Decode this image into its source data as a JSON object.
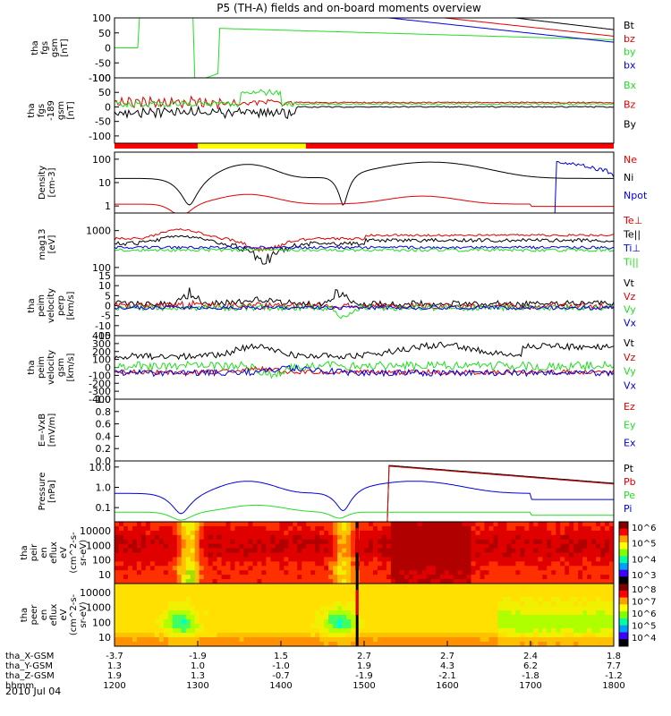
{
  "title": "P5 (TH-A) fields and on-board moments overview",
  "date_label": "2010 Jul 04",
  "colors": {
    "black": "#000000",
    "red": "#e00000",
    "green": "#22dd22",
    "blue": "#0000e0",
    "bar_red": "#ff0000",
    "bar_yellow": "#ffff00"
  },
  "chart_data": [
    {
      "id": "fgs",
      "type": "line",
      "ylabel": [
        "tha",
        "fgs",
        "gsm",
        "[nT]"
      ],
      "yticks": [
        100,
        50,
        0,
        -50,
        -100
      ],
      "ylim": [
        -100,
        100
      ],
      "legend": [
        {
          "label": "Bt",
          "color": "#000000"
        },
        {
          "label": "bz",
          "color": "#e00000"
        },
        {
          "label": "by",
          "color": "#22dd22"
        },
        {
          "label": "bx",
          "color": "#0000e0"
        }
      ]
    },
    {
      "id": "fgs_lowres",
      "type": "line",
      "ylabel": [
        "tha",
        "fgs",
        "-189",
        "gsm",
        "[nT]"
      ],
      "yticks": [
        100,
        50,
        0,
        -50,
        -100
      ],
      "ylim": [
        -125,
        100
      ],
      "legend": [
        {
          "label": "Bx",
          "color": "#22dd22"
        },
        {
          "label": "Bz",
          "color": "#e00000"
        },
        {
          "label": "By",
          "color": "#000000"
        }
      ]
    },
    {
      "id": "density",
      "type": "line",
      "scale": "log",
      "ylabel": [
        "Density",
        "[cm-3]"
      ],
      "yticks": [
        "100",
        "10",
        "1"
      ],
      "ylim": [
        0.5,
        200
      ],
      "legend": [
        {
          "label": "Ne",
          "color": "#e00000"
        },
        {
          "label": "Ni",
          "color": "#000000"
        },
        {
          "label": "Npot",
          "color": "#0000e0"
        }
      ]
    },
    {
      "id": "temperature",
      "type": "line",
      "scale": "log",
      "ylabel": [
        "mag13",
        "[eV]"
      ],
      "yticks": [
        "1000",
        "100"
      ],
      "ylim": [
        60,
        3000
      ],
      "legend": [
        {
          "label": "Te⊥",
          "color": "#e00000"
        },
        {
          "label": "Te||",
          "color": "#000000"
        },
        {
          "label": "Ti⊥",
          "color": "#0000e0"
        },
        {
          "label": "Ti||",
          "color": "#22dd22"
        }
      ]
    },
    {
      "id": "vel_perp",
      "type": "line",
      "ylabel": [
        "tha",
        "peim",
        "velocity",
        "perp",
        "[km/s]"
      ],
      "yticks": [
        "15",
        "10",
        "5",
        "0",
        "-5",
        "-10",
        "-15"
      ],
      "ylim": [
        -15,
        15
      ],
      "legend": [
        {
          "label": "Vt",
          "color": "#000000"
        },
        {
          "label": "Vz",
          "color": "#e00000"
        },
        {
          "label": "Vy",
          "color": "#22dd22"
        },
        {
          "label": "Vx",
          "color": "#0000e0"
        }
      ]
    },
    {
      "id": "vel_gsm",
      "type": "line",
      "ylabel": [
        "tha",
        "peim",
        "velocity",
        "gsm",
        "[km/s]"
      ],
      "yticks": [
        "400",
        "300",
        "200",
        "100",
        "0",
        "-100",
        "-200",
        "-300",
        "-400"
      ],
      "ylim": [
        -400,
        400
      ],
      "legend": [
        {
          "label": "Vt",
          "color": "#000000"
        },
        {
          "label": "Vz",
          "color": "#e00000"
        },
        {
          "label": "Vy",
          "color": "#22dd22"
        },
        {
          "label": "Vx",
          "color": "#0000e0"
        }
      ]
    },
    {
      "id": "efield",
      "type": "line",
      "ylabel": [
        "E=-VxB",
        "[mV/m]"
      ],
      "yticks": [
        "1.0",
        "0.8",
        "0.6",
        "0.4",
        "0.2",
        "0.0"
      ],
      "ylim": [
        0,
        1
      ],
      "legend": [
        {
          "label": "Ez",
          "color": "#e00000"
        },
        {
          "label": "Ey",
          "color": "#22dd22"
        },
        {
          "label": "Ex",
          "color": "#0000e0"
        }
      ]
    },
    {
      "id": "pressure",
      "type": "line",
      "scale": "log",
      "ylabel": [
        "Pressure",
        "[nPa]"
      ],
      "yticks": [
        "10.0",
        "1.0",
        "0.1"
      ],
      "ylim": [
        0.02,
        20
      ],
      "legend": [
        {
          "label": "Pt",
          "color": "#000000"
        },
        {
          "label": "Pb",
          "color": "#e00000"
        },
        {
          "label": "Pe",
          "color": "#22dd22"
        },
        {
          "label": "Pi",
          "color": "#0000e0"
        }
      ]
    },
    {
      "id": "ion_spec",
      "type": "heatmap",
      "ylabel": [
        "tha",
        "peir",
        "en",
        "eflux",
        "eV",
        "(cm^2-s-",
        "sr-eV)"
      ],
      "yticks": [
        "10000",
        "1000",
        "100",
        "10"
      ],
      "colorbar": [
        "10^6",
        "10^5",
        "10^4",
        "10^3"
      ]
    },
    {
      "id": "elec_spec",
      "type": "heatmap",
      "ylabel": [
        "tha",
        "peer",
        "en",
        "eflux",
        "eV",
        "(cm^2-s-",
        "sr-eV)"
      ],
      "yticks": [
        "10000",
        "1000",
        "100",
        "10"
      ],
      "colorbar": [
        "10^8",
        "10^7",
        "10^6",
        "10^5",
        "10^4"
      ]
    }
  ],
  "x_axis": {
    "rows": [
      {
        "label": "tha_X-GSM",
        "values": [
          "-3.7",
          "-1.9",
          "1.5",
          "2.7",
          "2.7",
          "2.4",
          "1.8"
        ]
      },
      {
        "label": "tha_Y-GSM",
        "values": [
          "1.3",
          "1.0",
          "-1.0",
          "1.9",
          "4.3",
          "6.2",
          "7.7"
        ]
      },
      {
        "label": "tha_Z-GSM",
        "values": [
          "1.9",
          "1.3",
          "-0.7",
          "-1.9",
          "-2.1",
          "-1.8",
          "-1.2"
        ]
      },
      {
        "label": "hhmm",
        "values": [
          "1200",
          "1300",
          "1400",
          "1500",
          "1600",
          "1700",
          "1800"
        ]
      }
    ]
  }
}
